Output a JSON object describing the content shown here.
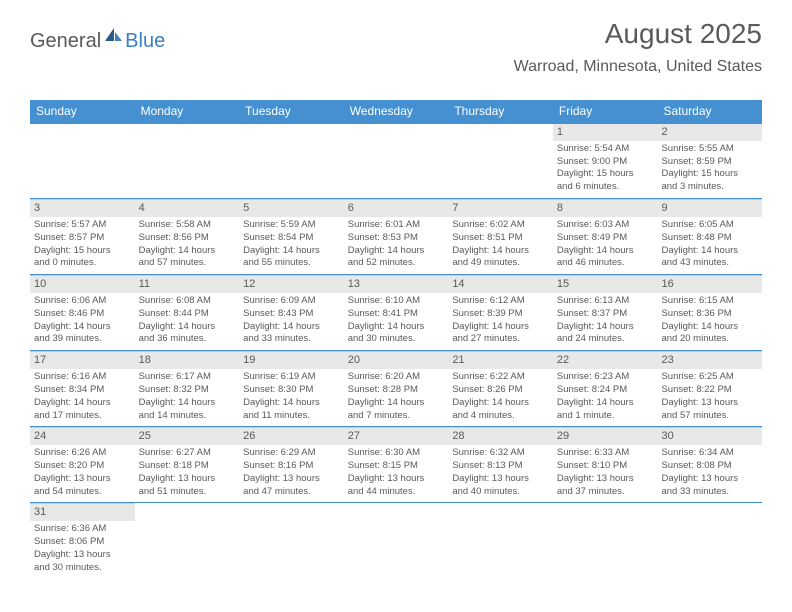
{
  "logo": {
    "text1": "General",
    "text2": "Blue"
  },
  "header": {
    "month": "August 2025",
    "location": "Warroad, Minnesota, United States"
  },
  "colors": {
    "header_bg": "#4590d0",
    "header_text": "#ffffff",
    "cell_text": "#5a5a5a",
    "daynum_bg": "#e8e8e8",
    "row_border": "#4590d0",
    "cell_border": "#cccccc"
  },
  "dayNames": [
    "Sunday",
    "Monday",
    "Tuesday",
    "Wednesday",
    "Thursday",
    "Friday",
    "Saturday"
  ],
  "weeks": [
    [
      null,
      null,
      null,
      null,
      null,
      {
        "num": "1",
        "sunrise": "Sunrise: 5:54 AM",
        "sunset": "Sunset: 9:00 PM",
        "daylight1": "Daylight: 15 hours",
        "daylight2": "and 6 minutes."
      },
      {
        "num": "2",
        "sunrise": "Sunrise: 5:55 AM",
        "sunset": "Sunset: 8:59 PM",
        "daylight1": "Daylight: 15 hours",
        "daylight2": "and 3 minutes."
      }
    ],
    [
      {
        "num": "3",
        "sunrise": "Sunrise: 5:57 AM",
        "sunset": "Sunset: 8:57 PM",
        "daylight1": "Daylight: 15 hours",
        "daylight2": "and 0 minutes."
      },
      {
        "num": "4",
        "sunrise": "Sunrise: 5:58 AM",
        "sunset": "Sunset: 8:56 PM",
        "daylight1": "Daylight: 14 hours",
        "daylight2": "and 57 minutes."
      },
      {
        "num": "5",
        "sunrise": "Sunrise: 5:59 AM",
        "sunset": "Sunset: 8:54 PM",
        "daylight1": "Daylight: 14 hours",
        "daylight2": "and 55 minutes."
      },
      {
        "num": "6",
        "sunrise": "Sunrise: 6:01 AM",
        "sunset": "Sunset: 8:53 PM",
        "daylight1": "Daylight: 14 hours",
        "daylight2": "and 52 minutes."
      },
      {
        "num": "7",
        "sunrise": "Sunrise: 6:02 AM",
        "sunset": "Sunset: 8:51 PM",
        "daylight1": "Daylight: 14 hours",
        "daylight2": "and 49 minutes."
      },
      {
        "num": "8",
        "sunrise": "Sunrise: 6:03 AM",
        "sunset": "Sunset: 8:49 PM",
        "daylight1": "Daylight: 14 hours",
        "daylight2": "and 46 minutes."
      },
      {
        "num": "9",
        "sunrise": "Sunrise: 6:05 AM",
        "sunset": "Sunset: 8:48 PM",
        "daylight1": "Daylight: 14 hours",
        "daylight2": "and 43 minutes."
      }
    ],
    [
      {
        "num": "10",
        "sunrise": "Sunrise: 6:06 AM",
        "sunset": "Sunset: 8:46 PM",
        "daylight1": "Daylight: 14 hours",
        "daylight2": "and 39 minutes."
      },
      {
        "num": "11",
        "sunrise": "Sunrise: 6:08 AM",
        "sunset": "Sunset: 8:44 PM",
        "daylight1": "Daylight: 14 hours",
        "daylight2": "and 36 minutes."
      },
      {
        "num": "12",
        "sunrise": "Sunrise: 6:09 AM",
        "sunset": "Sunset: 8:43 PM",
        "daylight1": "Daylight: 14 hours",
        "daylight2": "and 33 minutes."
      },
      {
        "num": "13",
        "sunrise": "Sunrise: 6:10 AM",
        "sunset": "Sunset: 8:41 PM",
        "daylight1": "Daylight: 14 hours",
        "daylight2": "and 30 minutes."
      },
      {
        "num": "14",
        "sunrise": "Sunrise: 6:12 AM",
        "sunset": "Sunset: 8:39 PM",
        "daylight1": "Daylight: 14 hours",
        "daylight2": "and 27 minutes."
      },
      {
        "num": "15",
        "sunrise": "Sunrise: 6:13 AM",
        "sunset": "Sunset: 8:37 PM",
        "daylight1": "Daylight: 14 hours",
        "daylight2": "and 24 minutes."
      },
      {
        "num": "16",
        "sunrise": "Sunrise: 6:15 AM",
        "sunset": "Sunset: 8:36 PM",
        "daylight1": "Daylight: 14 hours",
        "daylight2": "and 20 minutes."
      }
    ],
    [
      {
        "num": "17",
        "sunrise": "Sunrise: 6:16 AM",
        "sunset": "Sunset: 8:34 PM",
        "daylight1": "Daylight: 14 hours",
        "daylight2": "and 17 minutes."
      },
      {
        "num": "18",
        "sunrise": "Sunrise: 6:17 AM",
        "sunset": "Sunset: 8:32 PM",
        "daylight1": "Daylight: 14 hours",
        "daylight2": "and 14 minutes."
      },
      {
        "num": "19",
        "sunrise": "Sunrise: 6:19 AM",
        "sunset": "Sunset: 8:30 PM",
        "daylight1": "Daylight: 14 hours",
        "daylight2": "and 11 minutes."
      },
      {
        "num": "20",
        "sunrise": "Sunrise: 6:20 AM",
        "sunset": "Sunset: 8:28 PM",
        "daylight1": "Daylight: 14 hours",
        "daylight2": "and 7 minutes."
      },
      {
        "num": "21",
        "sunrise": "Sunrise: 6:22 AM",
        "sunset": "Sunset: 8:26 PM",
        "daylight1": "Daylight: 14 hours",
        "daylight2": "and 4 minutes."
      },
      {
        "num": "22",
        "sunrise": "Sunrise: 6:23 AM",
        "sunset": "Sunset: 8:24 PM",
        "daylight1": "Daylight: 14 hours",
        "daylight2": "and 1 minute."
      },
      {
        "num": "23",
        "sunrise": "Sunrise: 6:25 AM",
        "sunset": "Sunset: 8:22 PM",
        "daylight1": "Daylight: 13 hours",
        "daylight2": "and 57 minutes."
      }
    ],
    [
      {
        "num": "24",
        "sunrise": "Sunrise: 6:26 AM",
        "sunset": "Sunset: 8:20 PM",
        "daylight1": "Daylight: 13 hours",
        "daylight2": "and 54 minutes."
      },
      {
        "num": "25",
        "sunrise": "Sunrise: 6:27 AM",
        "sunset": "Sunset: 8:18 PM",
        "daylight1": "Daylight: 13 hours",
        "daylight2": "and 51 minutes."
      },
      {
        "num": "26",
        "sunrise": "Sunrise: 6:29 AM",
        "sunset": "Sunset: 8:16 PM",
        "daylight1": "Daylight: 13 hours",
        "daylight2": "and 47 minutes."
      },
      {
        "num": "27",
        "sunrise": "Sunrise: 6:30 AM",
        "sunset": "Sunset: 8:15 PM",
        "daylight1": "Daylight: 13 hours",
        "daylight2": "and 44 minutes."
      },
      {
        "num": "28",
        "sunrise": "Sunrise: 6:32 AM",
        "sunset": "Sunset: 8:13 PM",
        "daylight1": "Daylight: 13 hours",
        "daylight2": "and 40 minutes."
      },
      {
        "num": "29",
        "sunrise": "Sunrise: 6:33 AM",
        "sunset": "Sunset: 8:10 PM",
        "daylight1": "Daylight: 13 hours",
        "daylight2": "and 37 minutes."
      },
      {
        "num": "30",
        "sunrise": "Sunrise: 6:34 AM",
        "sunset": "Sunset: 8:08 PM",
        "daylight1": "Daylight: 13 hours",
        "daylight2": "and 33 minutes."
      }
    ],
    [
      {
        "num": "31",
        "sunrise": "Sunrise: 6:36 AM",
        "sunset": "Sunset: 8:06 PM",
        "daylight1": "Daylight: 13 hours",
        "daylight2": "and 30 minutes."
      },
      null,
      null,
      null,
      null,
      null,
      null
    ]
  ]
}
